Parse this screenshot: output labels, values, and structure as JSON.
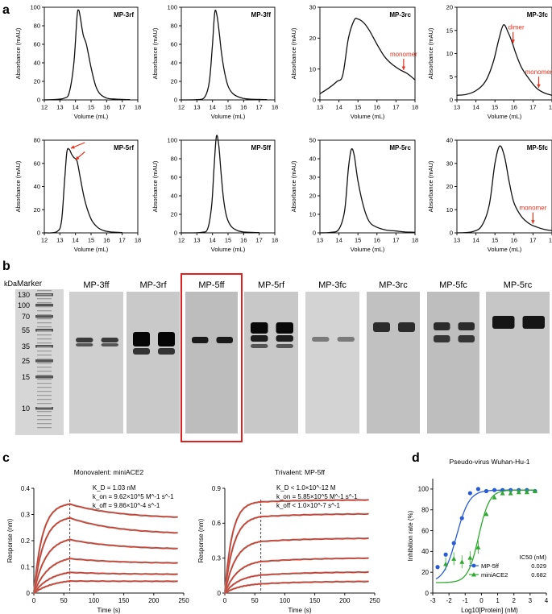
{
  "panel_labels": {
    "a": "a",
    "b": "b",
    "c": "c",
    "d": "d"
  },
  "colors": {
    "curve": "#111111",
    "arrow": "#e8301c",
    "fit": "#e8301c",
    "blue": "#2a5bd7",
    "green": "#2ea82e",
    "highlight": "#e0201c"
  },
  "chart_data": [
    {
      "id": "MP-3rf",
      "type": "line",
      "title": "MP-3rf",
      "xlabel": "Volume (mL)",
      "ylabel": "Absorbance (mAU)",
      "xlim": [
        12,
        18
      ],
      "ylim": [
        0,
        100
      ],
      "xticks": [
        "12",
        "13",
        "14",
        "15",
        "16",
        "17",
        "18"
      ],
      "yticks": [
        "0",
        "20",
        "40",
        "60",
        "80",
        "100"
      ],
      "x": [
        12.0,
        12.8,
        13.3,
        13.6,
        13.9,
        14.1,
        14.2,
        14.3,
        14.5,
        14.7,
        15.0,
        15.3,
        15.6,
        16.0,
        16.4,
        17.0,
        17.5
      ],
      "y": [
        0,
        0.5,
        2,
        8,
        40,
        90,
        97,
        90,
        70,
        60,
        35,
        15,
        6,
        2,
        1,
        0.5,
        0.3
      ],
      "annotations": []
    },
    {
      "id": "MP-3ff",
      "type": "line",
      "title": "MP-3ff",
      "xlabel": "Volume (mL)",
      "ylabel": "Absorbance (mAU)",
      "xlim": [
        12,
        18
      ],
      "ylim": [
        0,
        100
      ],
      "xticks": [
        "12",
        "13",
        "14",
        "15",
        "16",
        "17",
        "18"
      ],
      "yticks": [
        "0",
        "20",
        "40",
        "60",
        "80",
        "100"
      ],
      "x": [
        12.0,
        13.0,
        13.5,
        13.8,
        14.0,
        14.15,
        14.3,
        14.45,
        14.6,
        14.8,
        15.0,
        15.3,
        15.7,
        16.2,
        17.0,
        17.5
      ],
      "y": [
        0,
        0.3,
        3,
        20,
        60,
        95,
        90,
        70,
        48,
        28,
        15,
        7,
        3,
        1,
        0.5,
        0.3
      ],
      "annotations": []
    },
    {
      "id": "MP-3rc",
      "type": "line",
      "title": "MP-3rc",
      "xlabel": "Volume (mL)",
      "ylabel": "Absorbance (mAU)",
      "xlim": [
        13,
        18
      ],
      "ylim": [
        0,
        30
      ],
      "xticks": [
        "13",
        "14",
        "15",
        "16",
        "17",
        "18"
      ],
      "yticks": [
        "0",
        "10",
        "20",
        "30"
      ],
      "x": [
        13.0,
        13.5,
        13.9,
        14.2,
        14.5,
        14.8,
        15.0,
        15.3,
        15.6,
        16.0,
        16.4,
        16.8,
        17.2,
        17.6,
        18.0
      ],
      "y": [
        2,
        4,
        6,
        8,
        20,
        25.8,
        26.2,
        25,
        22.5,
        18,
        14,
        11.5,
        9.8,
        8.5,
        6.5
      ],
      "annotations": [
        "monomer"
      ]
    },
    {
      "id": "MP-3fc",
      "type": "line",
      "title": "MP-3fc",
      "xlabel": "Volume (mL)",
      "ylabel": "Absorbance (mAU)",
      "xlim": [
        13,
        18
      ],
      "ylim": [
        0,
        20
      ],
      "xticks": [
        "13",
        "14",
        "15",
        "16",
        "17",
        "18"
      ],
      "yticks": [
        "0",
        "5",
        "10",
        "15",
        "20"
      ],
      "x": [
        13.0,
        13.5,
        14.0,
        14.5,
        14.9,
        15.2,
        15.45,
        15.7,
        15.9,
        16.1,
        16.4,
        16.8,
        17.2,
        17.6,
        18.0
      ],
      "y": [
        1,
        1.2,
        2,
        4,
        8,
        13,
        16.2,
        14.5,
        12.5,
        10,
        7,
        4.5,
        2.5,
        1.5,
        1
      ],
      "annotations": [
        "dimer",
        "monomer"
      ]
    },
    {
      "id": "MP-5rf",
      "type": "line",
      "title": "MP-5rf",
      "xlabel": "Volume (mL)",
      "ylabel": "Absorbance (mAU)",
      "xlim": [
        12,
        18
      ],
      "ylim": [
        0,
        80
      ],
      "xticks": [
        "12",
        "13",
        "14",
        "15",
        "16",
        "17",
        "18"
      ],
      "yticks": [
        "0",
        "20",
        "40",
        "60",
        "80"
      ],
      "x": [
        12.0,
        12.8,
        13.1,
        13.3,
        13.45,
        13.6,
        13.75,
        13.9,
        14.1,
        14.3,
        14.6,
        15.0,
        15.4,
        15.8,
        16.3,
        17.0
      ],
      "y": [
        0,
        1,
        10,
        45,
        70,
        72,
        68,
        65,
        62,
        48,
        28,
        12,
        5,
        2,
        0.8,
        0.3
      ],
      "annotations": []
    },
    {
      "id": "MP-5ff",
      "type": "line",
      "title": "MP-5ff",
      "xlabel": "Volume (mL)",
      "ylabel": "Absorbance (mAU)",
      "xlim": [
        12,
        18
      ],
      "ylim": [
        0,
        100
      ],
      "xticks": [
        "12",
        "13",
        "14",
        "15",
        "16",
        "17",
        "18"
      ],
      "yticks": [
        "0",
        "20",
        "40",
        "60",
        "80",
        "100"
      ],
      "x": [
        12.0,
        13.3,
        13.7,
        13.95,
        14.1,
        14.25,
        14.4,
        14.55,
        14.7,
        14.9,
        15.2,
        15.6,
        16.0,
        16.5,
        17.0
      ],
      "y": [
        0,
        0.5,
        5,
        30,
        70,
        104,
        95,
        65,
        38,
        18,
        7,
        2.5,
        1,
        0.5,
        0.3
      ],
      "annotations": []
    },
    {
      "id": "MP-5rc",
      "type": "line",
      "title": "MP-5rc",
      "xlabel": "Volume (mL)",
      "ylabel": "Absorbance (mAU)",
      "xlim": [
        13,
        18
      ],
      "ylim": [
        0,
        50
      ],
      "xticks": [
        "13",
        "14",
        "15",
        "16",
        "17",
        "18"
      ],
      "yticks": [
        "0",
        "10",
        "20",
        "30",
        "40",
        "50"
      ],
      "x": [
        13.0,
        13.6,
        14.0,
        14.3,
        14.5,
        14.65,
        14.8,
        15.0,
        15.3,
        15.6,
        16.0,
        16.5,
        17.0,
        17.5,
        18.0
      ],
      "y": [
        0,
        0.3,
        2,
        12,
        35,
        45,
        42,
        28,
        14,
        6,
        3,
        1.5,
        1,
        0.5,
        0.3
      ],
      "annotations": []
    },
    {
      "id": "MP-5fc",
      "type": "line",
      "title": "MP-5fc",
      "xlabel": "Volume (mL)",
      "ylabel": "Absorbance (mAU)",
      "xlim": [
        13,
        18
      ],
      "ylim": [
        0,
        40
      ],
      "xticks": [
        "13",
        "14",
        "15",
        "16",
        "17",
        "18"
      ],
      "yticks": [
        "0",
        "10",
        "20",
        "30",
        "40"
      ],
      "x": [
        13.0,
        13.8,
        14.3,
        14.7,
        15.0,
        15.25,
        15.5,
        15.75,
        16.0,
        16.4,
        16.8,
        17.2,
        17.6,
        18.0
      ],
      "y": [
        0,
        0.5,
        3,
        12,
        30,
        37.5,
        33,
        22,
        13,
        7,
        4,
        2.5,
        1.5,
        1
      ],
      "annotations": [
        "monomer"
      ]
    },
    {
      "id": "c-left",
      "type": "line",
      "title": "Monovalent: miniACE2",
      "xlabel": "Time (s)",
      "ylabel": "Response (nm)",
      "xlim": [
        0,
        250
      ],
      "ylim": [
        0,
        0.4
      ],
      "xticks": [
        "0",
        "50",
        "100",
        "150",
        "200",
        "250"
      ],
      "yticks": [
        "0",
        "0.1",
        "0.2",
        "0.3",
        "0.4"
      ],
      "dissociation_start": 60,
      "kinetics": [
        "K_D = 1.03 nM",
        "k_on = 9.62×10^5 M^-1 s^-1",
        "k_off = 9.86×10^-4 s^-1"
      ],
      "series": [
        {
          "name": "c1",
          "plateau": 0.345,
          "assoc_rate": 0.07,
          "end": 0.29
        },
        {
          "name": "c2",
          "plateau": 0.295,
          "assoc_rate": 0.06,
          "end": 0.23
        },
        {
          "name": "c3",
          "plateau": 0.215,
          "assoc_rate": 0.05,
          "end": 0.17
        },
        {
          "name": "c4",
          "plateau": 0.145,
          "assoc_rate": 0.04,
          "end": 0.115
        },
        {
          "name": "c5",
          "plateau": 0.09,
          "assoc_rate": 0.035,
          "end": 0.072
        },
        {
          "name": "c6",
          "plateau": 0.055,
          "assoc_rate": 0.03,
          "end": 0.045
        }
      ]
    },
    {
      "id": "c-right",
      "type": "line",
      "title": "Trivalent: MP-5ff",
      "xlabel": "Time (s)",
      "ylabel": "Response (nm)",
      "xlim": [
        0,
        250
      ],
      "ylim": [
        0,
        0.9
      ],
      "xticks": [
        "0",
        "50",
        "100",
        "150",
        "200",
        "250"
      ],
      "yticks": [
        "0",
        "0.3",
        "0.6",
        "0.9"
      ],
      "dissociation_start": 60,
      "kinetics": [
        "K_D < 1.0×10^-12 M",
        "k_on = 5.85×10^5 M^-1 s^-1",
        "k_off < 1.0×10^-7 s^-1"
      ],
      "series": [
        {
          "name": "c1",
          "plateau": 0.79,
          "assoc_rate": 0.08,
          "end": 0.8
        },
        {
          "name": "c2",
          "plateau": 0.67,
          "assoc_rate": 0.065,
          "end": 0.68
        },
        {
          "name": "c3",
          "plateau": 0.46,
          "assoc_rate": 0.055,
          "end": 0.47
        },
        {
          "name": "c4",
          "plateau": 0.29,
          "assoc_rate": 0.045,
          "end": 0.3
        },
        {
          "name": "c5",
          "plateau": 0.17,
          "assoc_rate": 0.04,
          "end": 0.18
        },
        {
          "name": "c6",
          "plateau": 0.09,
          "assoc_rate": 0.035,
          "end": 0.1
        }
      ]
    },
    {
      "id": "d",
      "type": "scatter",
      "title": "Pseudo-virus Wuhan-Hu-1",
      "xlabel": "Log10[Protein] (nM)",
      "ylabel": "Inhibition rate (%)",
      "xlim": [
        -3,
        4
      ],
      "ylim": [
        0,
        110
      ],
      "xticks": [
        "-3",
        "-2",
        "-1",
        "0",
        "1",
        "2",
        "3",
        "4"
      ],
      "yticks": [
        "0",
        "20",
        "40",
        "60",
        "80",
        "100"
      ],
      "series": [
        {
          "name": "MP-5ff",
          "ic50": "0.029",
          "x": [
            -2.7,
            -2.2,
            -1.7,
            -1.2,
            -0.7,
            -0.2,
            0.3,
            0.8,
            1.3,
            1.8,
            2.3,
            2.8,
            3.3
          ],
          "y": [
            25,
            37,
            48,
            72,
            96,
            100,
            98,
            99,
            99,
            99,
            99,
            99,
            98
          ],
          "logIC50": -1.54,
          "hill": 1.1
        },
        {
          "name": "miniACE2",
          "ic50": "0.682",
          "x": [
            -2.2,
            -1.7,
            -1.2,
            -0.7,
            -0.2,
            0.3,
            0.8,
            1.3,
            1.8,
            2.3,
            2.8,
            3.3
          ],
          "y": [
            28,
            33,
            30,
            34,
            44,
            76,
            92,
            96,
            96,
            97,
            97,
            98
          ],
          "logIC50": -0.17,
          "hill": 1.3
        }
      ],
      "legend_header": "IC50 (nM)"
    }
  ],
  "gel": {
    "kda_label": "kDa",
    "marker_label": "Marker",
    "marker_kda": [
      "130",
      "100",
      "70",
      "55",
      "35",
      "25",
      "15",
      "10"
    ],
    "lanes": [
      "MP-3ff",
      "MP-3rf",
      "MP-5ff",
      "MP-5rf",
      "MP-3fc",
      "MP-3rc",
      "MP-5fc",
      "MP-5rc"
    ],
    "highlighted_lane": "MP-5ff"
  }
}
